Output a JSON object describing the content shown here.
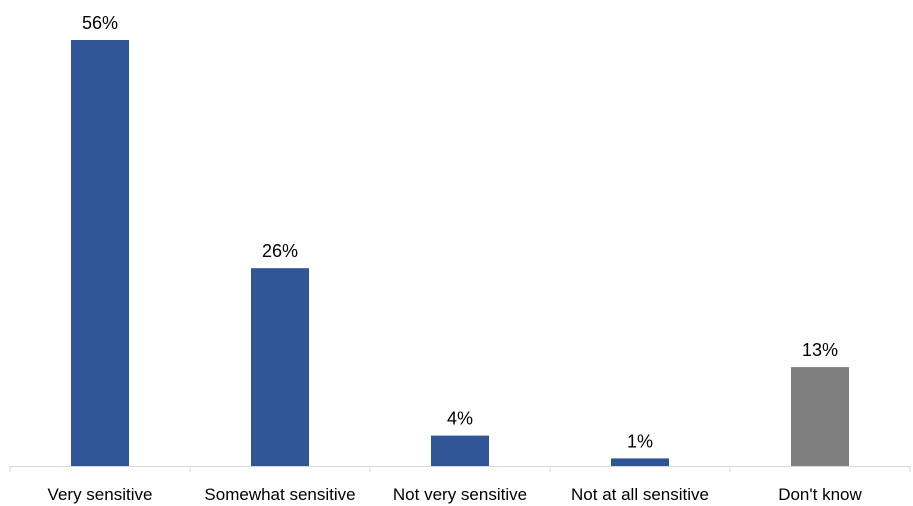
{
  "chart_data": {
    "type": "bar",
    "categories": [
      "Very sensitive",
      "Somewhat sensitive",
      "Not very sensitive",
      "Not at all sensitive",
      "Don't know"
    ],
    "values": [
      56,
      26,
      4,
      1,
      13
    ],
    "value_labels": [
      "56%",
      "26%",
      "4%",
      "1%",
      "13%"
    ],
    "bar_colors": [
      "#2f5597",
      "#2f5597",
      "#2f5597",
      "#2f5597",
      "#7f7f7f"
    ],
    "title": "",
    "xlabel": "",
    "ylabel": "",
    "ylim": [
      0,
      56
    ],
    "grid": false,
    "legend": "none"
  },
  "colors": {
    "accent": "#2f5597",
    "neutral": "#7f7f7f",
    "axis": "#d9d9d9"
  }
}
